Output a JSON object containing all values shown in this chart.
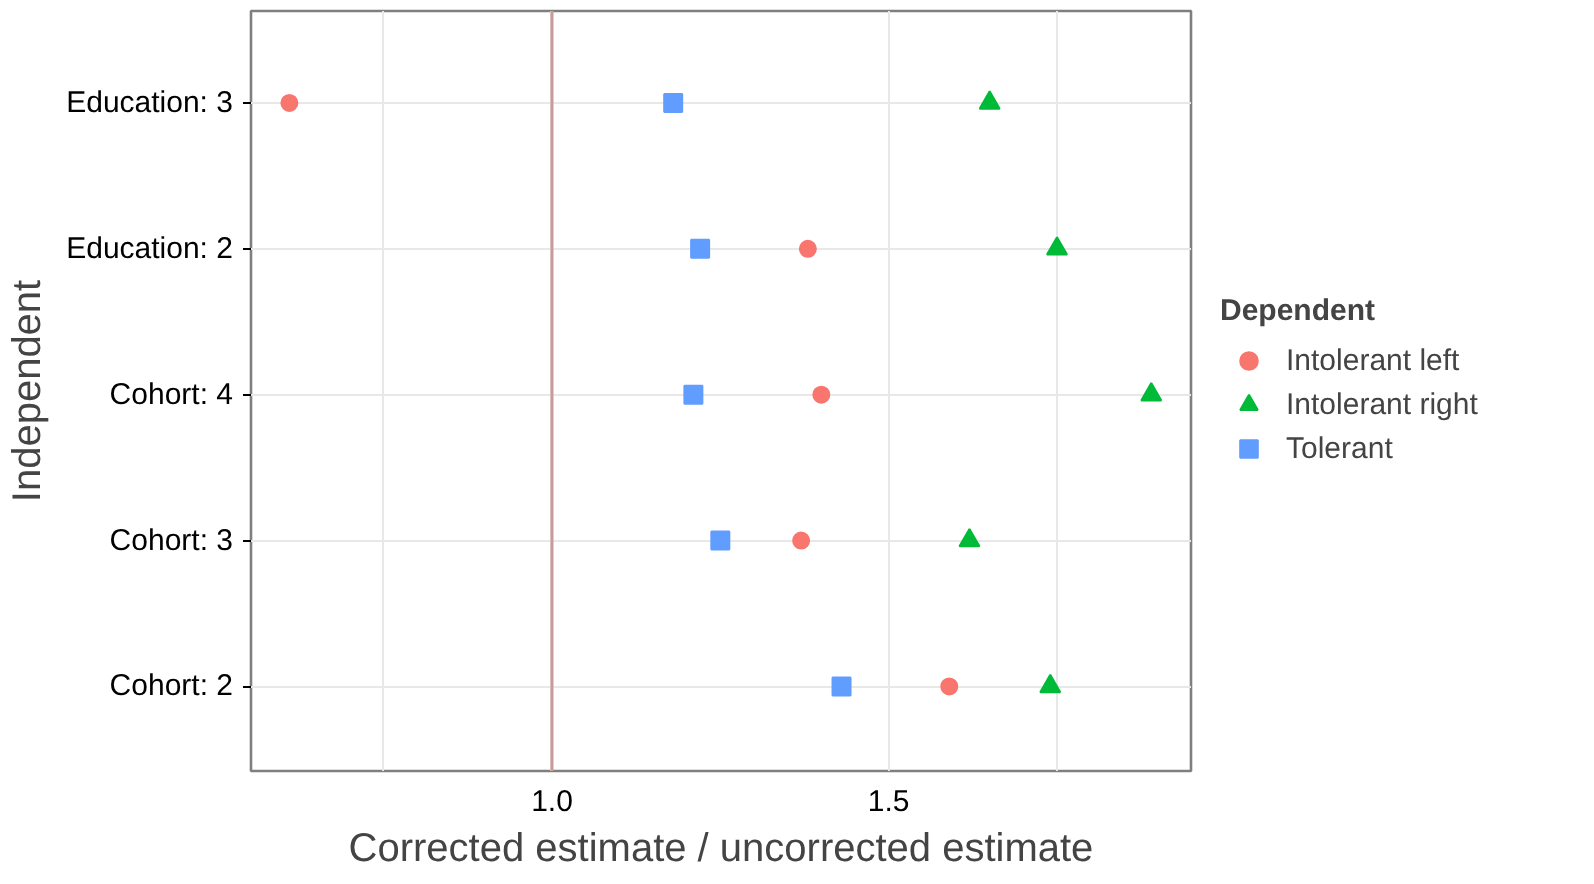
{
  "chart_data": {
    "type": "scatter",
    "orientation": "horizontal",
    "xlabel": "Corrected estimate / uncorrected estimate",
    "ylabel": "Independent",
    "legend_title": "Dependent",
    "legend": "right",
    "grid": true,
    "categories": [
      "Education: 3",
      "Education: 2",
      "Cohort: 4",
      "Cohort: 3",
      "Cohort: 2"
    ],
    "xlim": [
      0.553,
      1.949
    ],
    "xticks": [
      {
        "value": 0.75,
        "label": null
      },
      {
        "value": 1.0,
        "label": "1.0"
      },
      1.5,
      {
        "value": 1.75,
        "label": null
      }
    ],
    "ref_lines": [
      {
        "axis": "x",
        "value": 1.0,
        "color": "#c89a9a"
      }
    ],
    "series": [
      {
        "name": "Intolerant left",
        "color": "#f8766d",
        "marker": "circle",
        "values": [
          0.61,
          1.38,
          1.4,
          1.37,
          1.59
        ]
      },
      {
        "name": "Intolerant right",
        "color": "#00ba38",
        "marker": "triangle",
        "values": [
          1.65,
          1.75,
          1.89,
          1.62,
          1.74
        ]
      },
      {
        "name": "Tolerant",
        "color": "#619cff",
        "marker": "square",
        "values": [
          1.18,
          1.22,
          1.21,
          1.25,
          1.43
        ]
      }
    ]
  }
}
